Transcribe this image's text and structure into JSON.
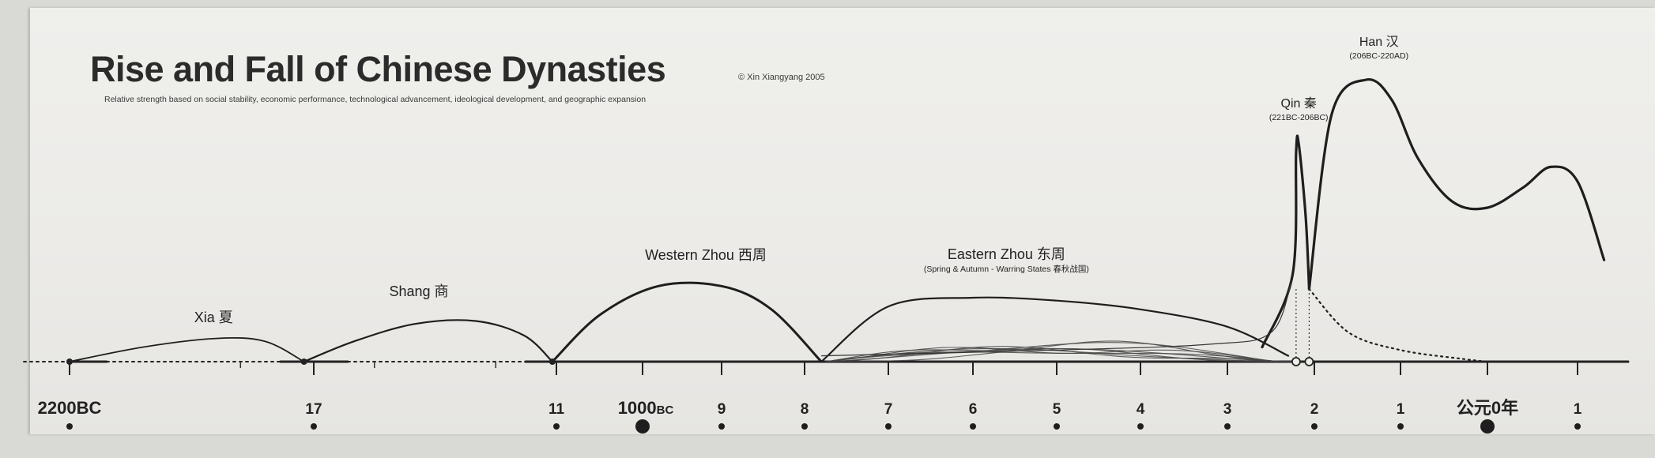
{
  "title": "Rise and Fall of Chinese Dynasties",
  "copyright": "© Xin Xiangyang 2005",
  "subtitle": "Relative strength based on social stability, economic performance, technological advancement, ideological development, and geographic expansion",
  "chart_data": {
    "type": "line",
    "title": "Rise and Fall of Chinese Dynasties",
    "xlabel": "",
    "ylabel": "",
    "x_unit": "year (negative = BC)",
    "xlim": [
      -2250,
      150
    ],
    "ylim": [
      0,
      1
    ],
    "grid": false,
    "legend": "none",
    "tick_labels": [
      {
        "year": -2200,
        "label": "2200BC",
        "major": true
      },
      {
        "year": -1700,
        "label": "17",
        "major": false
      },
      {
        "year": -1100,
        "label": "11",
        "major": false
      },
      {
        "year": -1000,
        "label": "1000",
        "suffix": "BC",
        "major": true
      },
      {
        "year": -900,
        "label": "9",
        "major": false
      },
      {
        "year": -800,
        "label": "8",
        "major": false
      },
      {
        "year": -700,
        "label": "7",
        "major": false
      },
      {
        "year": -600,
        "label": "6",
        "major": false
      },
      {
        "year": -500,
        "label": "5",
        "major": false
      },
      {
        "year": -400,
        "label": "4",
        "major": false
      },
      {
        "year": -300,
        "label": "3",
        "major": false
      },
      {
        "year": -200,
        "label": "2",
        "major": false
      },
      {
        "year": -100,
        "label": "1",
        "major": false
      },
      {
        "year": 0,
        "label": "公元0年",
        "major": true
      },
      {
        "year": 100,
        "label": "1",
        "major": false
      }
    ],
    "series": [
      {
        "name": "Xia 夏",
        "period": "",
        "x": [
          -2200,
          -2050,
          -1900,
          -1800,
          -1720
        ],
        "y": [
          0.0,
          0.05,
          0.08,
          0.07,
          0.0
        ],
        "weight": 1.8
      },
      {
        "name": "Shang 商",
        "period": "",
        "x": [
          -1720,
          -1600,
          -1450,
          -1300,
          -1180,
          -1110
        ],
        "y": [
          0.0,
          0.07,
          0.13,
          0.14,
          0.09,
          0.0
        ],
        "weight": 2.2
      },
      {
        "name": "Western Zhou 西周",
        "period": "",
        "x": [
          -1110,
          -1050,
          -980,
          -900,
          -840,
          -780
        ],
        "y": [
          0.0,
          0.16,
          0.26,
          0.26,
          0.18,
          0.0
        ],
        "weight": 3.0
      },
      {
        "name": "Eastern Zhou 东周",
        "period": "(Spring & Autumn - Warring States 春秋战国)",
        "x": [
          -780,
          -700,
          -600,
          -500,
          -400,
          -300,
          -230
        ],
        "y": [
          0.0,
          0.19,
          0.22,
          0.21,
          0.18,
          0.12,
          0.02
        ],
        "weight": 2.2
      },
      {
        "name": "Qin 秦",
        "period": "(221BC-206BC)",
        "x": [
          -260,
          -225,
          -221,
          -218,
          -210,
          -206
        ],
        "y": [
          0.05,
          0.3,
          0.72,
          0.75,
          0.5,
          0.25
        ],
        "weight": 3.2
      },
      {
        "name": "Han 汉",
        "period": "(206BC-220AD)",
        "x": [
          -206,
          -180,
          -140,
          -110,
          -80,
          -40,
          0,
          40,
          70,
          100,
          130
        ],
        "y": [
          0.25,
          0.85,
          0.97,
          0.9,
          0.7,
          0.55,
          0.53,
          0.6,
          0.67,
          0.62,
          0.35
        ],
        "weight": 3.2
      }
    ],
    "warring_states_lines": 8,
    "qin_end_markers": [
      -221,
      -206
    ]
  }
}
